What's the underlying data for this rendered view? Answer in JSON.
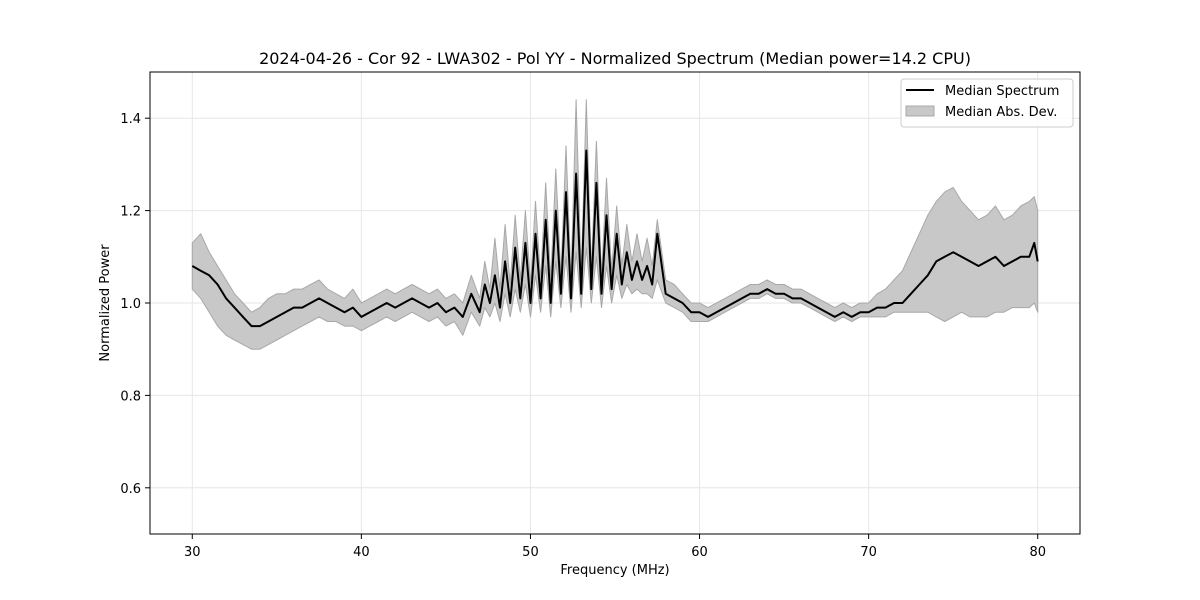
{
  "chart_data": {
    "type": "line",
    "title": "2024-04-26 - Cor 92 - LWA302 - Pol YY - Normalized Spectrum (Median power=14.2 CPU)",
    "xlabel": "Frequency (MHz)",
    "ylabel": "Normalized Power",
    "xlim": [
      27.5,
      82.5
    ],
    "ylim": [
      0.5,
      1.5
    ],
    "xticks": [
      30,
      40,
      50,
      60,
      70,
      80
    ],
    "yticks": [
      0.6,
      0.8,
      1.0,
      1.2,
      1.4
    ],
    "xtick_labels": [
      "30",
      "40",
      "50",
      "60",
      "70",
      "80"
    ],
    "ytick_labels": [
      "0.6",
      "0.8",
      "1.0",
      "1.2",
      "1.4"
    ],
    "grid": true,
    "legend": {
      "position": "top-right",
      "entries": [
        "Median Spectrum",
        "Median Abs. Dev."
      ]
    },
    "colors": {
      "line": "#000000",
      "band": "#c8c8c8",
      "band_edge": "#a8a8a8",
      "grid": "#e6e6e6"
    },
    "series": [
      {
        "name": "Median Spectrum",
        "x": [
          30.0,
          30.5,
          31.0,
          31.5,
          32.0,
          32.5,
          33.0,
          33.5,
          34.0,
          34.5,
          35.0,
          35.5,
          36.0,
          36.5,
          37.0,
          37.5,
          38.0,
          38.5,
          39.0,
          39.5,
          40.0,
          40.5,
          41.0,
          41.5,
          42.0,
          42.5,
          43.0,
          43.5,
          44.0,
          44.5,
          45.0,
          45.5,
          46.0,
          46.5,
          47.0,
          47.3,
          47.6,
          47.9,
          48.2,
          48.5,
          48.8,
          49.1,
          49.4,
          49.7,
          50.0,
          50.3,
          50.6,
          50.9,
          51.2,
          51.5,
          51.8,
          52.1,
          52.4,
          52.7,
          53.0,
          53.3,
          53.6,
          53.9,
          54.2,
          54.5,
          54.8,
          55.1,
          55.4,
          55.7,
          56.0,
          56.3,
          56.6,
          56.9,
          57.2,
          57.5,
          58.0,
          58.5,
          59.0,
          59.5,
          60.0,
          60.5,
          61.0,
          61.5,
          62.0,
          62.5,
          63.0,
          63.5,
          64.0,
          64.5,
          65.0,
          65.5,
          66.0,
          66.5,
          67.0,
          67.5,
          68.0,
          68.5,
          69.0,
          69.5,
          70.0,
          70.5,
          71.0,
          71.5,
          72.0,
          72.5,
          73.0,
          73.5,
          74.0,
          74.5,
          75.0,
          75.5,
          76.0,
          76.5,
          77.0,
          77.5,
          78.0,
          78.5,
          79.0,
          79.5,
          79.8,
          80.0
        ],
        "y": [
          1.08,
          1.07,
          1.06,
          1.04,
          1.01,
          0.99,
          0.97,
          0.95,
          0.95,
          0.96,
          0.97,
          0.98,
          0.99,
          0.99,
          1.0,
          1.01,
          1.0,
          0.99,
          0.98,
          0.99,
          0.97,
          0.98,
          0.99,
          1.0,
          0.99,
          1.0,
          1.01,
          1.0,
          0.99,
          1.0,
          0.98,
          0.99,
          0.97,
          1.02,
          0.98,
          1.04,
          1.0,
          1.06,
          0.99,
          1.09,
          1.0,
          1.12,
          1.01,
          1.13,
          1.0,
          1.15,
          1.01,
          1.18,
          1.0,
          1.2,
          1.02,
          1.24,
          1.01,
          1.28,
          1.02,
          1.33,
          1.03,
          1.26,
          1.02,
          1.19,
          1.03,
          1.15,
          1.04,
          1.11,
          1.05,
          1.09,
          1.05,
          1.08,
          1.04,
          1.15,
          1.02,
          1.01,
          1.0,
          0.98,
          0.98,
          0.97,
          0.98,
          0.99,
          1.0,
          1.01,
          1.02,
          1.02,
          1.03,
          1.02,
          1.02,
          1.01,
          1.01,
          1.0,
          0.99,
          0.98,
          0.97,
          0.98,
          0.97,
          0.98,
          0.98,
          0.99,
          0.99,
          1.0,
          1.0,
          1.02,
          1.04,
          1.06,
          1.09,
          1.1,
          1.11,
          1.1,
          1.09,
          1.08,
          1.09,
          1.1,
          1.08,
          1.09,
          1.1,
          1.1,
          1.13,
          1.09
        ]
      },
      {
        "name": "Median Abs. Dev.",
        "x": [
          30.0,
          30.5,
          31.0,
          31.5,
          32.0,
          32.5,
          33.0,
          33.5,
          34.0,
          34.5,
          35.0,
          35.5,
          36.0,
          36.5,
          37.0,
          37.5,
          38.0,
          38.5,
          39.0,
          39.5,
          40.0,
          40.5,
          41.0,
          41.5,
          42.0,
          42.5,
          43.0,
          43.5,
          44.0,
          44.5,
          45.0,
          45.5,
          46.0,
          46.5,
          47.0,
          47.3,
          47.6,
          47.9,
          48.2,
          48.5,
          48.8,
          49.1,
          49.4,
          49.7,
          50.0,
          50.3,
          50.6,
          50.9,
          51.2,
          51.5,
          51.8,
          52.1,
          52.4,
          52.7,
          53.0,
          53.3,
          53.6,
          53.9,
          54.2,
          54.5,
          54.8,
          55.1,
          55.4,
          55.7,
          56.0,
          56.3,
          56.6,
          56.9,
          57.2,
          57.5,
          58.0,
          58.5,
          59.0,
          59.5,
          60.0,
          60.5,
          61.0,
          61.5,
          62.0,
          62.5,
          63.0,
          63.5,
          64.0,
          64.5,
          65.0,
          65.5,
          66.0,
          66.5,
          67.0,
          67.5,
          68.0,
          68.5,
          69.0,
          69.5,
          70.0,
          70.5,
          71.0,
          71.5,
          72.0,
          72.5,
          73.0,
          73.5,
          74.0,
          74.5,
          75.0,
          75.5,
          76.0,
          76.5,
          77.0,
          77.5,
          78.0,
          78.5,
          79.0,
          79.5,
          79.8,
          80.0
        ],
        "upper": [
          1.13,
          1.15,
          1.11,
          1.08,
          1.05,
          1.02,
          1.0,
          0.98,
          0.99,
          1.01,
          1.02,
          1.02,
          1.03,
          1.03,
          1.04,
          1.05,
          1.03,
          1.02,
          1.01,
          1.03,
          1.0,
          1.01,
          1.02,
          1.03,
          1.02,
          1.03,
          1.04,
          1.03,
          1.02,
          1.03,
          1.01,
          1.02,
          1.0,
          1.06,
          1.01,
          1.09,
          1.03,
          1.14,
          1.03,
          1.17,
          1.04,
          1.19,
          1.05,
          1.2,
          1.04,
          1.22,
          1.05,
          1.26,
          1.05,
          1.29,
          1.06,
          1.34,
          1.05,
          1.44,
          1.06,
          1.44,
          1.07,
          1.35,
          1.06,
          1.27,
          1.07,
          1.21,
          1.08,
          1.17,
          1.09,
          1.15,
          1.09,
          1.14,
          1.08,
          1.18,
          1.05,
          1.04,
          1.02,
          1.0,
          1.0,
          0.99,
          1.0,
          1.01,
          1.02,
          1.03,
          1.04,
          1.04,
          1.05,
          1.04,
          1.04,
          1.03,
          1.03,
          1.02,
          1.01,
          1.0,
          0.99,
          1.0,
          0.99,
          1.0,
          1.0,
          1.02,
          1.03,
          1.05,
          1.07,
          1.11,
          1.15,
          1.19,
          1.22,
          1.24,
          1.25,
          1.22,
          1.2,
          1.18,
          1.19,
          1.21,
          1.18,
          1.19,
          1.21,
          1.22,
          1.23,
          1.2
        ],
        "lower": [
          1.03,
          1.01,
          0.98,
          0.95,
          0.93,
          0.92,
          0.91,
          0.9,
          0.9,
          0.91,
          0.92,
          0.93,
          0.94,
          0.95,
          0.96,
          0.97,
          0.96,
          0.96,
          0.95,
          0.95,
          0.94,
          0.95,
          0.96,
          0.97,
          0.96,
          0.97,
          0.98,
          0.97,
          0.96,
          0.97,
          0.95,
          0.96,
          0.93,
          0.98,
          0.95,
          0.99,
          0.97,
          1.0,
          0.96,
          1.02,
          0.97,
          1.03,
          0.98,
          1.04,
          0.97,
          1.06,
          0.98,
          1.08,
          0.97,
          1.09,
          0.99,
          1.1,
          0.98,
          1.11,
          0.99,
          1.12,
          1.0,
          1.1,
          0.99,
          1.08,
          1.0,
          1.06,
          1.01,
          1.04,
          1.02,
          1.03,
          1.02,
          1.02,
          1.01,
          1.05,
          1.0,
          0.99,
          0.98,
          0.96,
          0.96,
          0.96,
          0.97,
          0.98,
          0.99,
          1.0,
          1.01,
          1.01,
          1.02,
          1.01,
          1.01,
          1.0,
          1.0,
          0.99,
          0.98,
          0.97,
          0.96,
          0.97,
          0.96,
          0.97,
          0.97,
          0.97,
          0.97,
          0.98,
          0.98,
          0.98,
          0.98,
          0.98,
          0.97,
          0.96,
          0.97,
          0.98,
          0.97,
          0.97,
          0.97,
          0.98,
          0.98,
          0.99,
          0.99,
          0.99,
          1.0,
          0.98
        ]
      }
    ]
  }
}
